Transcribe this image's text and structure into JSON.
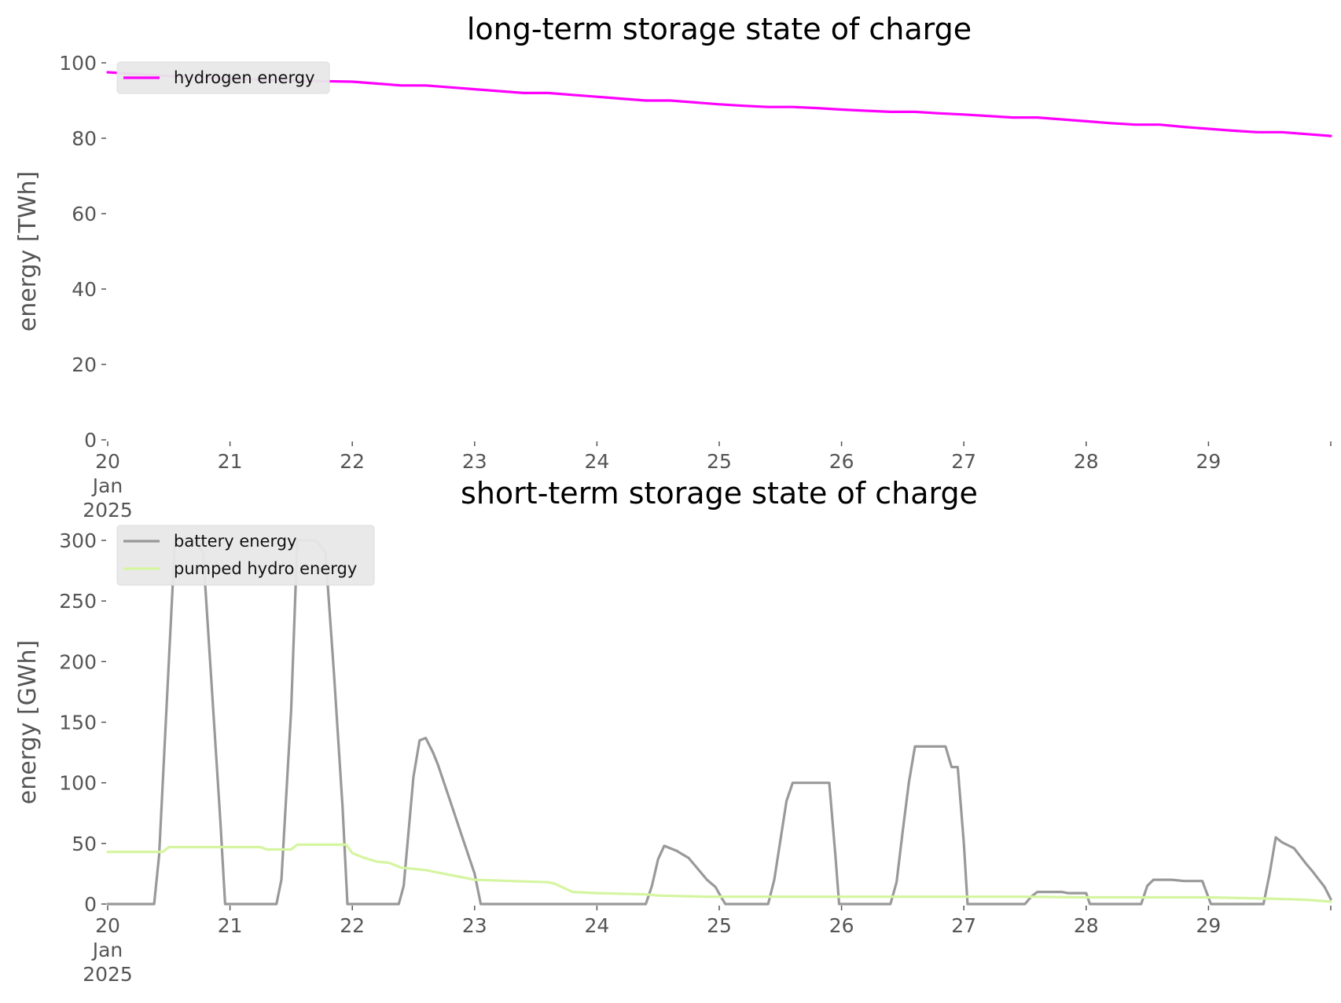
{
  "chart_data": [
    {
      "type": "line",
      "title": "long-term storage state of charge",
      "ylabel": "energy [TWh]",
      "xlabel": "",
      "ylim": [
        0,
        100
      ],
      "yticks": [
        0,
        20,
        40,
        60,
        80,
        100
      ],
      "xlim": [
        0,
        10
      ],
      "xticks": [
        {
          "x": 0,
          "lines": [
            "20",
            "Jan",
            "2025"
          ]
        },
        {
          "x": 1,
          "lines": [
            "21"
          ]
        },
        {
          "x": 2,
          "lines": [
            "22"
          ]
        },
        {
          "x": 3,
          "lines": [
            "23"
          ]
        },
        {
          "x": 4,
          "lines": [
            "24"
          ]
        },
        {
          "x": 5,
          "lines": [
            "25"
          ]
        },
        {
          "x": 6,
          "lines": [
            "26"
          ]
        },
        {
          "x": 7,
          "lines": [
            "27"
          ]
        },
        {
          "x": 8,
          "lines": [
            "28"
          ]
        },
        {
          "x": 9,
          "lines": [
            "29"
          ]
        }
      ],
      "grid": false,
      "legend": "top-left",
      "series": [
        {
          "name": "hydrogen energy",
          "color": "#ff00ff",
          "points": [
            [
              0,
              97.5
            ],
            [
              0.5,
              96.5
            ],
            [
              1,
              95.8
            ],
            [
              1.5,
              95.3
            ],
            [
              2,
              95
            ],
            [
              2.2,
              94.5
            ],
            [
              2.4,
              94
            ],
            [
              2.6,
              94
            ],
            [
              2.8,
              93.5
            ],
            [
              3,
              93
            ],
            [
              3.2,
              92.5
            ],
            [
              3.4,
              92
            ],
            [
              3.6,
              92
            ],
            [
              3.8,
              91.5
            ],
            [
              4,
              91
            ],
            [
              4.2,
              90.5
            ],
            [
              4.4,
              90
            ],
            [
              4.6,
              90
            ],
            [
              4.8,
              89.5
            ],
            [
              5,
              89
            ],
            [
              5.2,
              88.6
            ],
            [
              5.4,
              88.3
            ],
            [
              5.6,
              88.3
            ],
            [
              5.8,
              88
            ],
            [
              6,
              87.6
            ],
            [
              6.2,
              87.3
            ],
            [
              6.4,
              87
            ],
            [
              6.6,
              87
            ],
            [
              6.8,
              86.6
            ],
            [
              7,
              86.3
            ],
            [
              7.2,
              85.9
            ],
            [
              7.4,
              85.5
            ],
            [
              7.6,
              85.5
            ],
            [
              7.8,
              85
            ],
            [
              8,
              84.5
            ],
            [
              8.2,
              84
            ],
            [
              8.4,
              83.6
            ],
            [
              8.6,
              83.6
            ],
            [
              8.8,
              83
            ],
            [
              9,
              82.5
            ],
            [
              9.2,
              82
            ],
            [
              9.4,
              81.6
            ],
            [
              9.6,
              81.6
            ],
            [
              9.8,
              81.1
            ],
            [
              10,
              80.6
            ]
          ]
        }
      ]
    },
    {
      "type": "line",
      "title": "short-term storage state of charge",
      "ylabel": "energy [GWh]",
      "xlabel": "",
      "ylim": [
        0,
        310
      ],
      "yticks": [
        0,
        50,
        100,
        150,
        200,
        250,
        300
      ],
      "xlim": [
        0,
        10
      ],
      "xticks": [
        {
          "x": 0,
          "lines": [
            "20",
            "Jan",
            "2025"
          ]
        },
        {
          "x": 1,
          "lines": [
            "21"
          ]
        },
        {
          "x": 2,
          "lines": [
            "22"
          ]
        },
        {
          "x": 3,
          "lines": [
            "23"
          ]
        },
        {
          "x": 4,
          "lines": [
            "24"
          ]
        },
        {
          "x": 5,
          "lines": [
            "25"
          ]
        },
        {
          "x": 6,
          "lines": [
            "26"
          ]
        },
        {
          "x": 7,
          "lines": [
            "27"
          ]
        },
        {
          "x": 8,
          "lines": [
            "28"
          ]
        },
        {
          "x": 9,
          "lines": [
            "29"
          ]
        }
      ],
      "grid": false,
      "legend": "top-left",
      "series": [
        {
          "name": "battery energy",
          "color": "#999999",
          "points": [
            [
              0,
              0
            ],
            [
              0.38,
              0
            ],
            [
              0.42,
              40
            ],
            [
              0.5,
              200
            ],
            [
              0.55,
              300
            ],
            [
              0.7,
              300
            ],
            [
              0.78,
              290
            ],
            [
              0.85,
              180
            ],
            [
              0.92,
              70
            ],
            [
              0.96,
              0
            ],
            [
              1.38,
              0
            ],
            [
              1.42,
              20
            ],
            [
              1.5,
              160
            ],
            [
              1.55,
              300
            ],
            [
              1.7,
              300
            ],
            [
              1.78,
              290
            ],
            [
              1.85,
              190
            ],
            [
              1.92,
              80
            ],
            [
              1.96,
              0
            ],
            [
              2.38,
              0
            ],
            [
              2.42,
              15
            ],
            [
              2.5,
              105
            ],
            [
              2.55,
              135
            ],
            [
              2.6,
              137
            ],
            [
              2.66,
              125
            ],
            [
              2.7,
              115
            ],
            [
              2.8,
              85
            ],
            [
              2.9,
              55
            ],
            [
              3,
              25
            ],
            [
              3.05,
              0
            ],
            [
              4.4,
              0
            ],
            [
              4.45,
              15
            ],
            [
              4.5,
              37
            ],
            [
              4.55,
              48
            ],
            [
              4.65,
              44
            ],
            [
              4.75,
              38
            ],
            [
              4.8,
              32
            ],
            [
              4.9,
              20
            ],
            [
              4.97,
              14
            ],
            [
              5.02,
              5
            ],
            [
              5.05,
              0
            ],
            [
              5.4,
              0
            ],
            [
              5.45,
              20
            ],
            [
              5.55,
              85
            ],
            [
              5.6,
              100
            ],
            [
              5.9,
              100
            ],
            [
              5.95,
              40
            ],
            [
              5.98,
              0
            ],
            [
              6.4,
              0
            ],
            [
              6.45,
              18
            ],
            [
              6.5,
              60
            ],
            [
              6.55,
              100
            ],
            [
              6.6,
              130
            ],
            [
              6.85,
              130
            ],
            [
              6.9,
              113
            ],
            [
              6.95,
              113
            ],
            [
              7,
              50
            ],
            [
              7.03,
              0
            ],
            [
              7.5,
              0
            ],
            [
              7.55,
              6
            ],
            [
              7.6,
              10
            ],
            [
              7.8,
              10
            ],
            [
              7.85,
              9
            ],
            [
              8,
              9
            ],
            [
              8.03,
              0
            ],
            [
              8.45,
              0
            ],
            [
              8.5,
              15
            ],
            [
              8.55,
              20
            ],
            [
              8.7,
              20
            ],
            [
              8.8,
              19
            ],
            [
              8.95,
              19
            ],
            [
              9.02,
              0
            ],
            [
              9.45,
              0
            ],
            [
              9.5,
              25
            ],
            [
              9.55,
              55
            ],
            [
              9.6,
              51
            ],
            [
              9.7,
              46
            ],
            [
              9.8,
              33
            ],
            [
              9.85,
              27
            ],
            [
              9.95,
              14
            ],
            [
              10,
              4
            ]
          ]
        },
        {
          "name": "pumped hydro energy",
          "color": "#d5f5a0",
          "points": [
            [
              0,
              43
            ],
            [
              0.45,
              43
            ],
            [
              0.5,
              47
            ],
            [
              1.25,
              47
            ],
            [
              1.3,
              45
            ],
            [
              1.5,
              45
            ],
            [
              1.55,
              49
            ],
            [
              1.95,
              49
            ],
            [
              2,
              42
            ],
            [
              2.1,
              38
            ],
            [
              2.2,
              35
            ],
            [
              2.3,
              34
            ],
            [
              2.4,
              30
            ],
            [
              2.5,
              29
            ],
            [
              2.6,
              28
            ],
            [
              2.7,
              26
            ],
            [
              2.8,
              24
            ],
            [
              2.9,
              22
            ],
            [
              3,
              20
            ],
            [
              3.3,
              19
            ],
            [
              3.6,
              18
            ],
            [
              3.65,
              17
            ],
            [
              3.8,
              10
            ],
            [
              4,
              9
            ],
            [
              4.4,
              8
            ],
            [
              4.5,
              7
            ],
            [
              4.9,
              6
            ],
            [
              5,
              6
            ],
            [
              6,
              6
            ],
            [
              7,
              6
            ],
            [
              7.5,
              6
            ],
            [
              8,
              5.5
            ],
            [
              9,
              5.5
            ],
            [
              9.5,
              4.5
            ],
            [
              9.8,
              3.5
            ],
            [
              10,
              2
            ]
          ]
        }
      ]
    }
  ]
}
